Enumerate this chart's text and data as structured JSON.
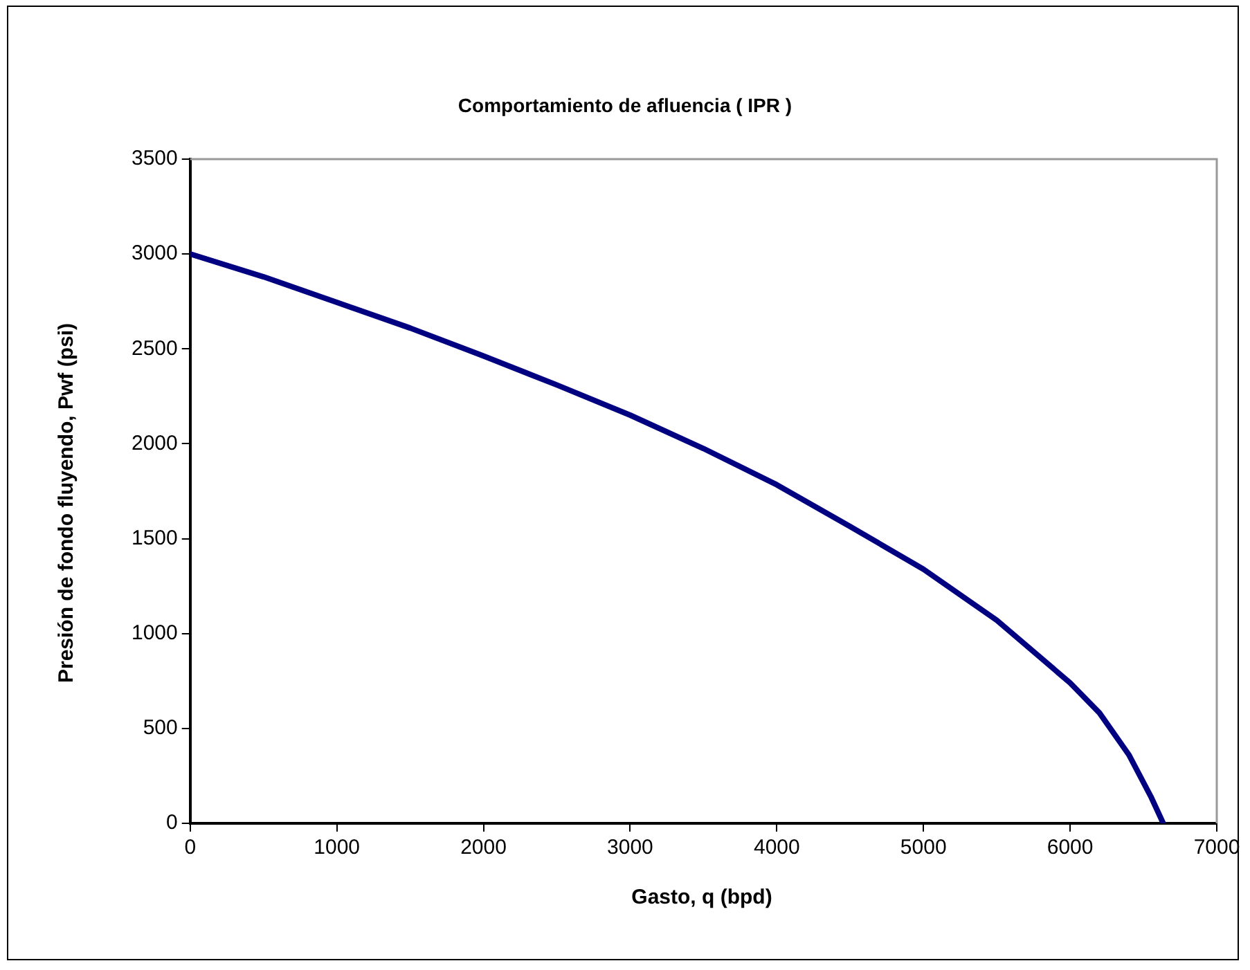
{
  "chart_data": {
    "type": "line",
    "title": "Comportamiento de afluencia ( IPR )",
    "xlabel": "Gasto, q (bpd)",
    "ylabel": "Presión de fondo fluyendo, Pwf (psi)",
    "x": [
      0,
      500,
      1000,
      1500,
      2000,
      2500,
      3000,
      3500,
      4000,
      4500,
      5000,
      5500,
      6000,
      6200,
      6400,
      6550,
      6635
    ],
    "series": [
      {
        "color": "#000080",
        "values": [
          3000,
          2880,
          2745,
          2610,
          2463,
          2310,
          2151,
          1975,
          1784,
          1564,
          1339,
          1070,
          740,
          582,
          362,
          142,
          0
        ]
      }
    ],
    "xlim": [
      0,
      7000
    ],
    "xticks": [
      0,
      1000,
      2000,
      3000,
      4000,
      5000,
      6000,
      7000
    ],
    "ylim": [
      0,
      3500
    ],
    "yticks": [
      0,
      500,
      1000,
      1500,
      2000,
      2500,
      3000,
      3500
    ],
    "grid": false,
    "legend": false,
    "marker": "none",
    "line_style": "solid"
  }
}
